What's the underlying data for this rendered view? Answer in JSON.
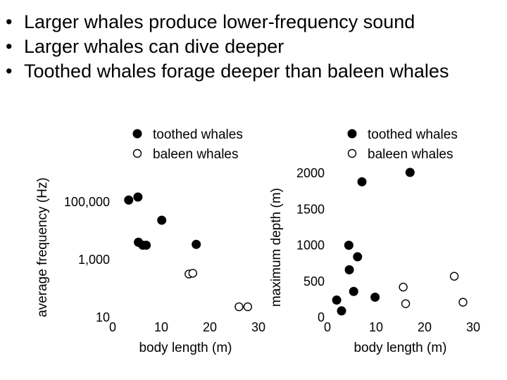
{
  "bullets": [
    "Larger whales produce lower-frequency sound",
    "Larger whales can dive deeper",
    "Toothed whales forage deeper than baleen whales"
  ],
  "chart_data": [
    {
      "type": "scatter",
      "xlabel": "body length (m)",
      "ylabel": "average frequency (Hz)",
      "xlim": [
        0,
        30
      ],
      "ylim": [
        10,
        1000000
      ],
      "yscale": "log",
      "xticks": [
        0,
        10,
        20,
        30
      ],
      "xtick_labels": [
        "0",
        "10",
        "20",
        "30"
      ],
      "yticks": [
        10,
        1000,
        100000
      ],
      "ytick_labels": [
        "10",
        "1,000",
        "100,000"
      ],
      "legend_position": "top",
      "series": [
        {
          "name": "toothed whales",
          "marker": "filled",
          "points": [
            {
              "x": 3.3,
              "y": 110000
            },
            {
              "x": 5.2,
              "y": 140000
            },
            {
              "x": 5.3,
              "y": 3800
            },
            {
              "x": 6.2,
              "y": 3000
            },
            {
              "x": 6.9,
              "y": 3000
            },
            {
              "x": 10.1,
              "y": 22000
            },
            {
              "x": 17.2,
              "y": 3200
            }
          ]
        },
        {
          "name": "baleen whales",
          "marker": "open",
          "points": [
            {
              "x": 15.7,
              "y": 300
            },
            {
              "x": 16.5,
              "y": 320
            },
            {
              "x": 26.0,
              "y": 22
            },
            {
              "x": 27.8,
              "y": 22
            }
          ]
        }
      ]
    },
    {
      "type": "scatter",
      "xlabel": "body length (m)",
      "ylabel": "maximum depth (m)",
      "xlim": [
        0,
        30
      ],
      "ylim": [
        0,
        2000
      ],
      "xticks": [
        0,
        10,
        20,
        30
      ],
      "xtick_labels": [
        "0",
        "10",
        "20",
        "30"
      ],
      "yticks": [
        0,
        500,
        1000,
        1500,
        2000
      ],
      "ytick_labels": [
        "0",
        "500",
        "1000",
        "1500",
        "2000"
      ],
      "legend_position": "top",
      "series": [
        {
          "name": "toothed whales",
          "marker": "filled",
          "points": [
            {
              "x": 1.9,
              "y": 230
            },
            {
              "x": 2.9,
              "y": 80
            },
            {
              "x": 4.4,
              "y": 990
            },
            {
              "x": 4.5,
              "y": 650
            },
            {
              "x": 5.4,
              "y": 350
            },
            {
              "x": 6.2,
              "y": 830
            },
            {
              "x": 7.1,
              "y": 1870
            },
            {
              "x": 9.8,
              "y": 270
            },
            {
              "x": 17.0,
              "y": 2000
            }
          ]
        },
        {
          "name": "baleen whales",
          "marker": "open",
          "points": [
            {
              "x": 15.6,
              "y": 410
            },
            {
              "x": 16.1,
              "y": 180
            },
            {
              "x": 26.1,
              "y": 560
            },
            {
              "x": 27.9,
              "y": 200
            }
          ]
        }
      ]
    }
  ]
}
